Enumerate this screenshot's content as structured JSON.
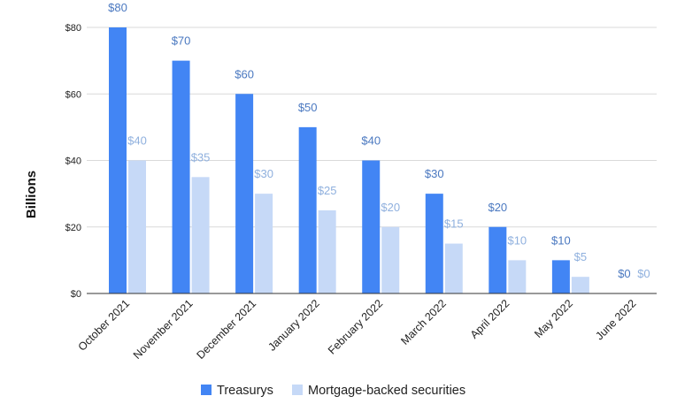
{
  "chart_data": {
    "type": "bar",
    "categories": [
      "October 2021",
      "November 2021",
      "December 2021",
      "January 2022",
      "February 2022",
      "March 2022",
      "April 2022",
      "May 2022",
      "June 2022"
    ],
    "series": [
      {
        "name": "Treasurys",
        "color": "#4285f4",
        "label_color": "#4a78c0",
        "values": [
          80,
          70,
          60,
          50,
          40,
          30,
          20,
          10,
          0
        ],
        "labels": [
          "$80",
          "$70",
          "$60",
          "$50",
          "$40",
          "$30",
          "$20",
          "$10",
          "$0"
        ]
      },
      {
        "name": "Mortgage-backed securities",
        "color": "#c6d9f7",
        "label_color": "#8fb0de",
        "values": [
          40,
          35,
          30,
          25,
          20,
          15,
          10,
          5,
          0
        ],
        "labels": [
          "$40",
          "$35",
          "$30",
          "$25",
          "$20",
          "$15",
          "$10",
          "$5",
          "$0"
        ]
      }
    ],
    "title": "",
    "xlabel": "",
    "ylabel": "Billions",
    "ylim": [
      0,
      80
    ],
    "yticks": [
      0,
      20,
      40,
      60,
      80
    ],
    "ytick_labels": [
      "$0",
      "$20",
      "$40",
      "$60",
      "$80"
    ],
    "grid": true,
    "legend_position": "bottom"
  }
}
